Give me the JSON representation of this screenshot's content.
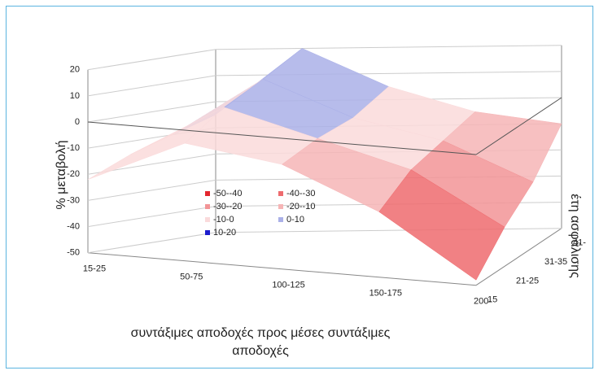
{
  "chart_data": {
    "type": "surface",
    "zlabel": "% μεταβολή",
    "xlabel": [
      "συντάξιμες αποδοχές προς μέσες συντάξιμες",
      "αποδοχές"
    ],
    "ylabel": "έτη ασφάλισης",
    "x": [
      "15-25",
      "50-75",
      "100-125",
      "150-175",
      "200-"
    ],
    "y": [
      "15",
      "21-25",
      "31-35",
      "41-"
    ],
    "values": [
      [
        -22,
        -5,
        -10,
        -25,
        -48
      ],
      [
        -15,
        5,
        -5,
        -15,
        -35
      ],
      [
        -10,
        12,
        -2,
        -10,
        -25
      ],
      [
        -5,
        20,
        5,
        -5,
        -10
      ]
    ],
    "zlim": [
      -50,
      20
    ],
    "zticks": [
      -50,
      -40,
      -30,
      -20,
      -10,
      0,
      10,
      20
    ],
    "legend": [
      {
        "label": "-50--40",
        "color": "#e3262e"
      },
      {
        "label": "-40--30",
        "color": "#ee6b6e"
      },
      {
        "label": "-30--20",
        "color": "#f29496"
      },
      {
        "label": "-20--10",
        "color": "#f6b5b6"
      },
      {
        "label": "-10-0",
        "color": "#fadadb"
      },
      {
        "label": "0-10",
        "color": "#aab0e8"
      },
      {
        "label": "10-20",
        "color": "#1c1ccc"
      }
    ]
  }
}
